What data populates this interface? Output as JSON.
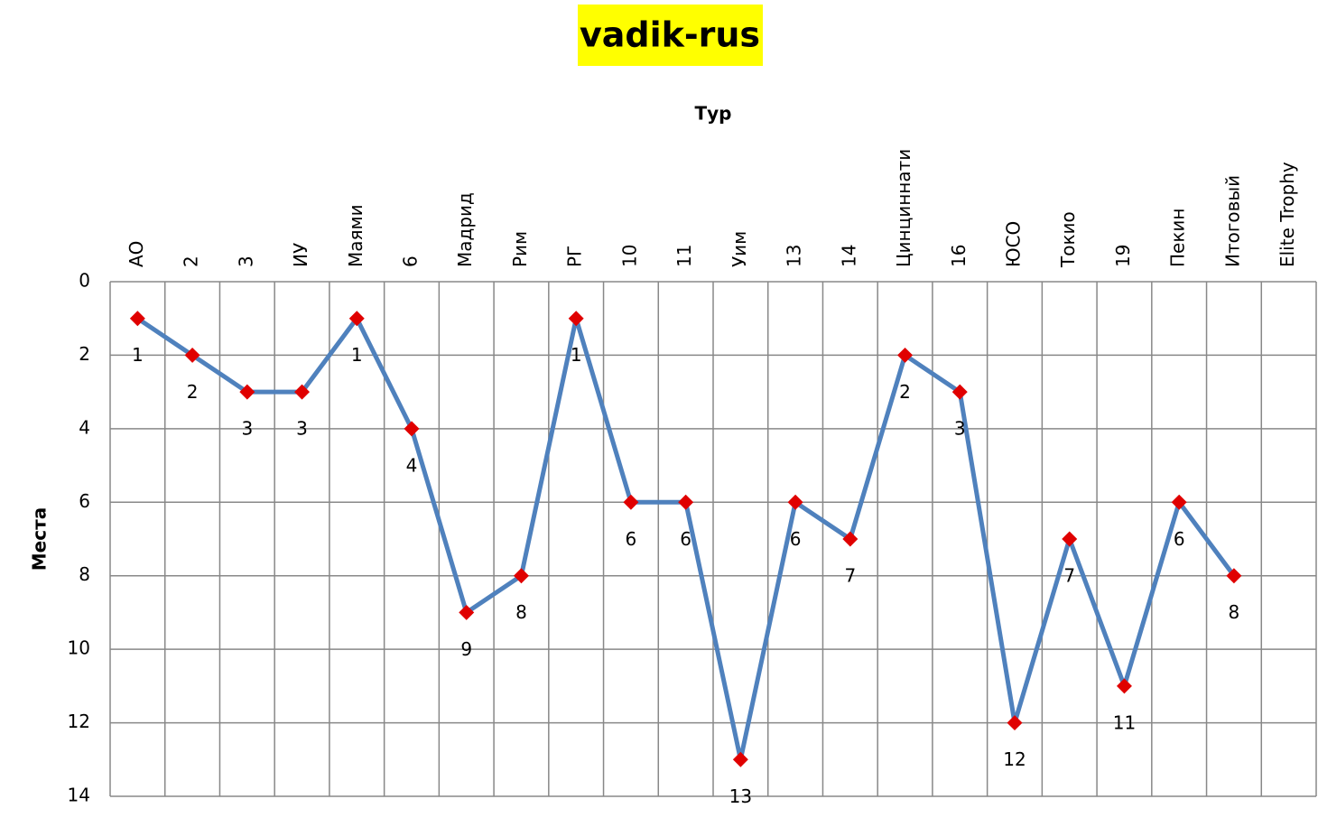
{
  "chart_data": {
    "type": "line",
    "title": "vadik-rus",
    "x_label": "Тур",
    "y_label": "Места",
    "categories": [
      "АО",
      "2",
      "3",
      "ИУ",
      "Маями",
      "6",
      "Мадрид",
      "Рим",
      "РГ",
      "10",
      "11",
      "Уим",
      "13",
      "14",
      "Цинциннати",
      "16",
      "ЮСО",
      "Токио",
      "19",
      "Пекин",
      "Итоговый",
      "Elite Trophy"
    ],
    "series": [
      {
        "name": "vadik-rus",
        "color": "#4f81bd",
        "marker_color": "#e00000",
        "values": [
          1,
          2,
          3,
          3,
          1,
          4,
          9,
          8,
          1,
          6,
          6,
          13,
          6,
          7,
          2,
          3,
          12,
          7,
          11,
          6,
          8,
          null
        ]
      }
    ],
    "ylim": [
      0,
      14
    ],
    "yticks": [
      0,
      2,
      4,
      6,
      8,
      10,
      12,
      14
    ],
    "y_inverted": true,
    "grid": true
  }
}
